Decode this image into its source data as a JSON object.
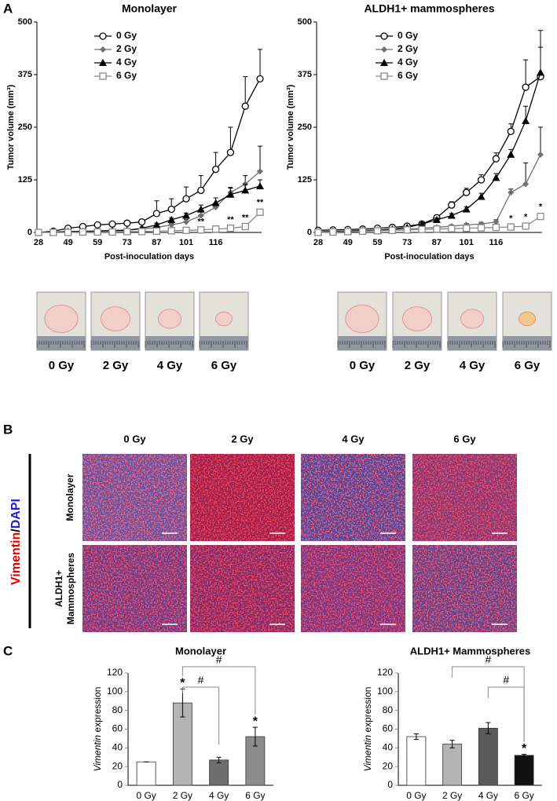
{
  "panels": [
    "A",
    "B",
    "C"
  ],
  "chart_data": [
    {
      "type": "line",
      "title": "Monolayer",
      "xlabel": "Post-inoculation days",
      "ylabel": "Tumor volume (mm³)",
      "categories": [
        "28",
        null,
        "49",
        null,
        "59",
        null,
        "73",
        null,
        "87",
        null,
        "101",
        null,
        "116",
        null,
        null,
        null
      ],
      "ylim": [
        0,
        500
      ],
      "yticks": [
        0,
        125,
        250,
        375,
        500
      ],
      "series": [
        {
          "name": "0 Gy",
          "color": "#000000",
          "marker": "circle",
          "values": [
            0,
            3,
            10,
            14,
            18,
            20,
            22,
            25,
            45,
            55,
            80,
            100,
            150,
            190,
            300,
            365
          ],
          "errors": [
            1,
            2,
            3,
            3,
            3,
            4,
            4,
            5,
            30,
            25,
            28,
            35,
            40,
            60,
            70,
            70
          ]
        },
        {
          "name": "2 Gy",
          "color": "#707070",
          "marker": "diamond",
          "values": [
            0,
            1,
            2,
            3,
            4,
            5,
            6,
            8,
            12,
            18,
            25,
            40,
            60,
            95,
            115,
            145
          ],
          "errors": [
            0,
            1,
            1,
            1,
            1,
            1,
            1,
            2,
            3,
            4,
            6,
            8,
            10,
            12,
            20,
            60
          ]
        },
        {
          "name": "4 Gy",
          "color": "#000000",
          "marker": "triangle",
          "values": [
            0,
            1,
            2,
            2,
            3,
            4,
            5,
            10,
            18,
            30,
            40,
            55,
            70,
            90,
            100,
            110
          ],
          "errors": [
            0,
            1,
            1,
            1,
            1,
            1,
            1,
            3,
            4,
            5,
            6,
            10,
            12,
            15,
            15,
            15
          ]
        },
        {
          "name": "6 Gy",
          "color": "#8a8a8a",
          "marker": "square",
          "values": [
            0,
            0,
            0,
            1,
            1,
            1,
            2,
            2,
            3,
            4,
            5,
            6,
            8,
            10,
            14,
            48
          ],
          "errors": [
            0,
            0,
            0,
            0,
            0,
            0,
            0,
            1,
            1,
            1,
            2,
            2,
            3,
            3,
            4,
            6
          ]
        }
      ],
      "annotations": [
        {
          "text": "**",
          "index": 11
        },
        {
          "text": "**",
          "index": 13
        },
        {
          "text": "**",
          "index": 14
        },
        {
          "text": "**",
          "index": 15
        }
      ],
      "photos": [
        "0 Gy",
        "2 Gy",
        "4 Gy",
        "6 Gy"
      ]
    },
    {
      "type": "line",
      "title": "ALDH1+ mammospheres",
      "xlabel": "Post-inoculation days",
      "ylabel": "Tumor volume (mm³)",
      "categories": [
        "28",
        null,
        "49",
        null,
        "59",
        null,
        "73",
        null,
        "87",
        null,
        "101",
        null,
        "116",
        null,
        null,
        null
      ],
      "ylim": [
        0,
        500
      ],
      "yticks": [
        0,
        125,
        250,
        375,
        500
      ],
      "series": [
        {
          "name": "0 Gy",
          "color": "#000000",
          "marker": "circle",
          "values": [
            5,
            6,
            7,
            8,
            10,
            12,
            15,
            20,
            35,
            65,
            95,
            125,
            175,
            240,
            345,
            370
          ],
          "errors": [
            2,
            2,
            2,
            2,
            2,
            3,
            3,
            4,
            6,
            8,
            10,
            12,
            14,
            18,
            65,
            70
          ]
        },
        {
          "name": "2 Gy",
          "color": "#707070",
          "marker": "diamond",
          "values": [
            2,
            3,
            4,
            5,
            6,
            7,
            8,
            10,
            12,
            15,
            18,
            20,
            25,
            95,
            115,
            185
          ],
          "errors": [
            1,
            1,
            1,
            1,
            1,
            1,
            2,
            2,
            2,
            3,
            3,
            4,
            5,
            8,
            50,
            65
          ]
        },
        {
          "name": "4 Gy",
          "color": "#000000",
          "marker": "triangle",
          "values": [
            0,
            2,
            3,
            4,
            5,
            8,
            12,
            20,
            30,
            40,
            55,
            85,
            130,
            185,
            265,
            380
          ],
          "errors": [
            1,
            1,
            1,
            1,
            1,
            2,
            2,
            3,
            4,
            5,
            6,
            8,
            10,
            12,
            35,
            100
          ]
        },
        {
          "name": "6 Gy",
          "color": "#8a8a8a",
          "marker": "square",
          "values": [
            0,
            1,
            2,
            3,
            4,
            5,
            6,
            7,
            8,
            9,
            10,
            11,
            12,
            13,
            15,
            38
          ],
          "errors": [
            0,
            0,
            0,
            1,
            1,
            1,
            1,
            1,
            1,
            1,
            2,
            2,
            2,
            3,
            4,
            6
          ]
        }
      ],
      "annotations": [
        {
          "text": "*",
          "index": 13
        },
        {
          "text": "*",
          "index": 14
        },
        {
          "text": "*",
          "index": 15
        }
      ],
      "photos": [
        "0 Gy",
        "2 Gy",
        "4 Gy",
        "6 Gy"
      ]
    },
    {
      "type": "bar",
      "title": "Monolayer",
      "ylabel_gene": "Vimentin",
      "ylabel": "expression",
      "categories": [
        "0 Gy",
        "2 Gy",
        "4 Gy",
        "6 Gy"
      ],
      "values": [
        25,
        88,
        27,
        52
      ],
      "errors": [
        0,
        15,
        3,
        10
      ],
      "colors": [
        "#ffffff",
        "#b4b4b4",
        "#6e6e6e",
        "#8c8c8c"
      ],
      "ylim": [
        0,
        120
      ],
      "yticks": [
        0,
        20,
        40,
        60,
        80,
        100,
        120
      ],
      "bar_labels": [
        null,
        "*",
        null,
        "*"
      ],
      "brackets": [
        {
          "label": "#",
          "from": 1,
          "to": 3
        },
        {
          "label": "#",
          "from": 1,
          "to": 2
        }
      ]
    },
    {
      "type": "bar",
      "title": "ALDH1+ Mammospheres",
      "ylabel_gene": "Vimentin",
      "ylabel": "expression",
      "categories": [
        "0 Gy",
        "2 Gy",
        "4 Gy",
        "6 Gy"
      ],
      "values": [
        52,
        44,
        61,
        32
      ],
      "errors": [
        3,
        4,
        6,
        1
      ],
      "colors": [
        "#ffffff",
        "#b4b4b4",
        "#5a5a5a",
        "#111111"
      ],
      "ylim": [
        0,
        120
      ],
      "yticks": [
        0,
        20,
        40,
        60,
        80,
        100,
        120
      ],
      "bar_labels": [
        null,
        null,
        null,
        "*"
      ],
      "brackets": [
        {
          "label": "#",
          "from": 1,
          "to": 3
        },
        {
          "label": "#",
          "from": 2,
          "to": 3
        }
      ]
    }
  ],
  "staining": {
    "columns": [
      "0 Gy",
      "2 Gy",
      "4 Gy",
      "6 Gy"
    ],
    "rows": [
      "Monolayer",
      [
        "ALDH1+",
        "Mammospheres"
      ]
    ],
    "marker": "Vimentin",
    "separator": "/",
    "counterstain": "DAPI"
  }
}
